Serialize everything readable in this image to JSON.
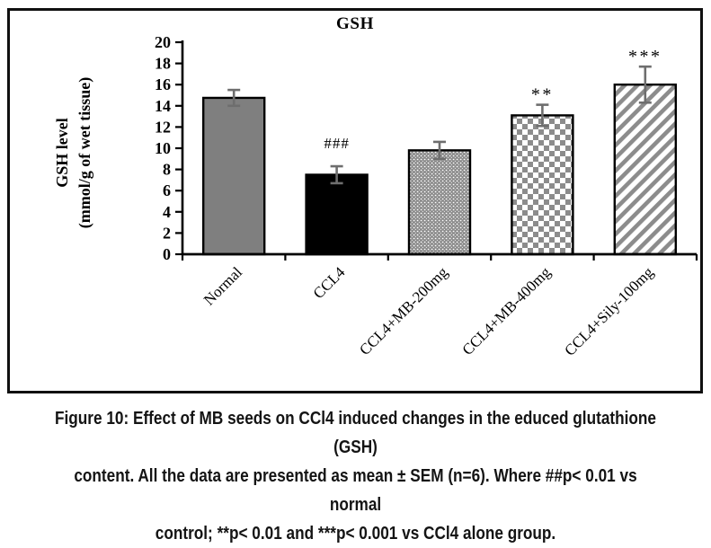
{
  "figure": {
    "caption_lines": [
      "Figure 10: Effect of MB seeds on CCl4 induced changes in the educed glutathione (GSH)",
      "content. All the data are presented as mean ± SEM (n=6). Where ##p< 0.01 vs normal",
      "control; **p< 0.01 and ***p< 0.001 vs CCl4 alone group."
    ]
  },
  "chart_data": {
    "type": "bar",
    "title": "GSH",
    "ylabel_lines": [
      "GSH level",
      "(mmol/g of wet tissue)"
    ],
    "xlabel": "",
    "categories": [
      "Normal",
      "CCL4",
      "CCL4+MB-200mg",
      "CCL4+MB-400mg",
      "CCL4+Sily-100mg"
    ],
    "values": [
      14.75,
      7.5,
      9.8,
      13.1,
      16.0
    ],
    "errors": [
      0.75,
      0.8,
      0.8,
      1.0,
      1.7
    ],
    "annotations": [
      "",
      "###",
      "",
      "**",
      "***"
    ],
    "bar_styles": [
      "solid-gray",
      "solid-black",
      "dots",
      "checker",
      "diagonal-stripes"
    ],
    "ylim": [
      0,
      20
    ],
    "ytick_step": 2,
    "grid": false,
    "legend": "none",
    "colors": {
      "bar_gray": "#7f7f7f",
      "bar_black": "#000000",
      "pattern_gray": "#8c8c8c",
      "error_bar": "#6e6e6e",
      "axis": "#000000"
    }
  }
}
